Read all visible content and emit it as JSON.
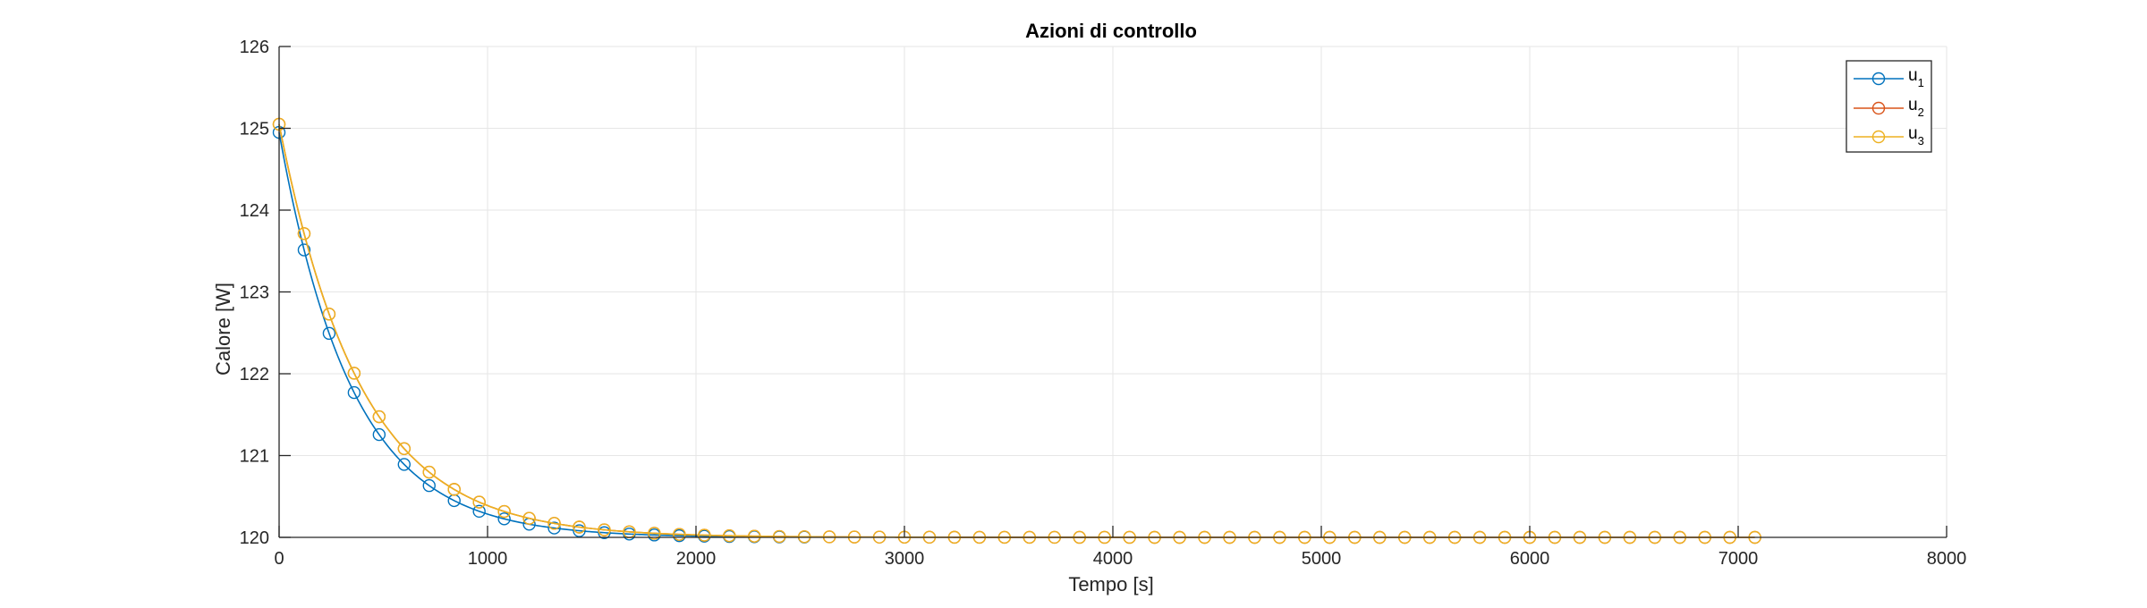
{
  "chart_data": {
    "type": "line",
    "title": "Azioni di controllo",
    "xlabel": "Tempo [s]",
    "ylabel": "Calore [W]",
    "xlim": [
      0,
      8000
    ],
    "ylim": [
      120,
      126
    ],
    "xticks": [
      "0",
      "1000",
      "2000",
      "3000",
      "4000",
      "5000",
      "6000",
      "7000",
      "8000"
    ],
    "yticks": [
      "120",
      "121",
      "122",
      "123",
      "124",
      "125",
      "126"
    ],
    "grid": true,
    "legend_position": "top-right",
    "legend": [
      {
        "base": "u",
        "sub": "1"
      },
      {
        "base": "u",
        "sub": "2"
      },
      {
        "base": "u",
        "sub": "3"
      }
    ],
    "marker": "circle",
    "marker_interval": 120,
    "colors": {
      "u1": "#0072BD",
      "u2": "#D95319",
      "u3": "#EDB120",
      "grid": "#e6e6e6",
      "axis": "#262626"
    },
    "series": [
      {
        "id": "u1",
        "model": "exponential",
        "x_start": 0,
        "x_end": 2520,
        "y_start": 124.95,
        "y_final": 120.0,
        "time_constant": 350
      },
      {
        "id": "u2",
        "model": "exponential",
        "x_start": 0,
        "x_end": 7080,
        "y_start": 125.05,
        "y_final": 120.0,
        "time_constant": 390
      },
      {
        "id": "u3",
        "model": "exponential",
        "x_start": 0,
        "x_end": 7080,
        "y_start": 125.05,
        "y_final": 120.0,
        "time_constant": 390
      }
    ]
  }
}
